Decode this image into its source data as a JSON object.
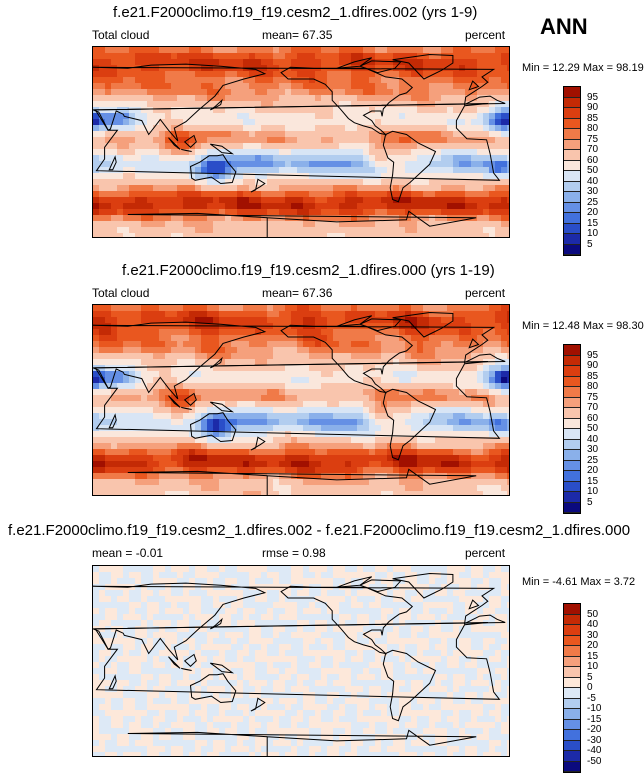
{
  "season": "ANN",
  "chart_data": [
    {
      "type": "heatmap",
      "title": "f.e21.F2000climo.f19_f19.cesm2_1.dfires.002 (yrs 1-9)",
      "left_label": "Total cloud",
      "center_label": "mean=  67.35",
      "units": "percent",
      "minmax": "Min = 12.29 Max = 98.19",
      "mean": 67.35,
      "min": 12.29,
      "max": 98.19,
      "colorbar_ticks": [
        "95",
        "90",
        "85",
        "80",
        "75",
        "70",
        "60",
        "50",
        "40",
        "30",
        "25",
        "20",
        "15",
        "10",
        "5"
      ],
      "colorbar_colors": [
        "#a11000",
        "#c42a05",
        "#db3e10",
        "#e9571f",
        "#f07a48",
        "#f5a07c",
        "#f9c5ad",
        "#fae7dc",
        "#d8e5f5",
        "#b2cdef",
        "#8ab0ea",
        "#6590e5",
        "#4271dd",
        "#2a4ec8",
        "#1c2aa8",
        "#0b0a7e"
      ]
    },
    {
      "type": "heatmap",
      "title": "f.e21.F2000climo.f19_f19.cesm2_1.dfires.000 (yrs 1-19)",
      "left_label": "Total cloud",
      "center_label": "mean=  67.36",
      "units": "percent",
      "minmax": "Min =  12.48 Max = 98.30",
      "mean": 67.36,
      "min": 12.48,
      "max": 98.3,
      "colorbar_ticks": [
        "95",
        "90",
        "85",
        "80",
        "75",
        "70",
        "60",
        "50",
        "40",
        "30",
        "25",
        "20",
        "15",
        "10",
        "5"
      ],
      "colorbar_colors": [
        "#a11000",
        "#c42a05",
        "#db3e10",
        "#e9571f",
        "#f07a48",
        "#f5a07c",
        "#f9c5ad",
        "#fae7dc",
        "#d8e5f5",
        "#b2cdef",
        "#8ab0ea",
        "#6590e5",
        "#4271dd",
        "#2a4ec8",
        "#1c2aa8",
        "#0b0a7e"
      ]
    },
    {
      "type": "heatmap",
      "title": "f.e21.F2000climo.f19_f19.cesm2_1.dfires.002 - f.e21.F2000climo.f19_f19.cesm2_1.dfires.000",
      "left_label": "mean =  -0.01",
      "center_label": "rmse =  0.98",
      "units": "percent",
      "minmax": "Min =  -4.61 Max =  3.72",
      "mean": -0.01,
      "rmse": 0.98,
      "min": -4.61,
      "max": 3.72,
      "colorbar_ticks": [
        "50",
        "40",
        "30",
        "20",
        "15",
        "10",
        "5",
        "0",
        "-5",
        "-10",
        "-15",
        "-20",
        "-30",
        "-40",
        "-50"
      ],
      "colorbar_colors": [
        "#a11000",
        "#c42a05",
        "#db3e10",
        "#e9571f",
        "#f07a48",
        "#f5a07c",
        "#f9c5ad",
        "#fde8da",
        "#dde9f6",
        "#b2cdef",
        "#8ab0ea",
        "#6590e5",
        "#4271dd",
        "#2a4ec8",
        "#1c2aa8",
        "#0b0a7e"
      ]
    }
  ]
}
